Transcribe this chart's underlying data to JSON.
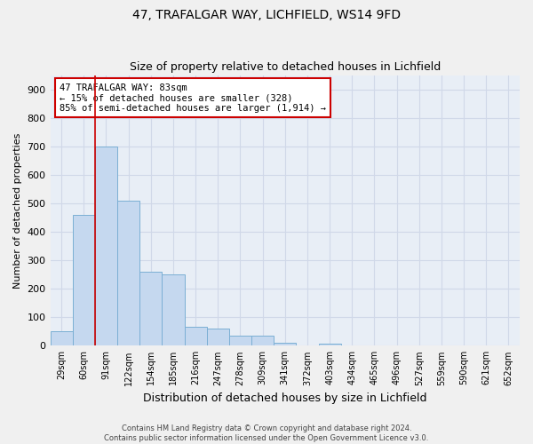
{
  "title1": "47, TRAFALGAR WAY, LICHFIELD, WS14 9FD",
  "title2": "Size of property relative to detached houses in Lichfield",
  "xlabel": "Distribution of detached houses by size in Lichfield",
  "ylabel": "Number of detached properties",
  "categories": [
    "29sqm",
    "60sqm",
    "91sqm",
    "122sqm",
    "154sqm",
    "185sqm",
    "216sqm",
    "247sqm",
    "278sqm",
    "309sqm",
    "341sqm",
    "372sqm",
    "403sqm",
    "434sqm",
    "465sqm",
    "496sqm",
    "527sqm",
    "559sqm",
    "590sqm",
    "621sqm",
    "652sqm"
  ],
  "values": [
    50,
    460,
    700,
    510,
    260,
    250,
    65,
    60,
    35,
    35,
    10,
    0,
    8,
    0,
    0,
    0,
    0,
    0,
    0,
    0,
    0
  ],
  "bar_color": "#c5d8ef",
  "bar_edge_color": "#7bafd4",
  "background_color": "#e8eef6",
  "grid_color": "#d0d8e8",
  "vline_x": 1.5,
  "vline_color": "#cc0000",
  "annotation_text": "47 TRAFALGAR WAY: 83sqm\n← 15% of detached houses are smaller (328)\n85% of semi-detached houses are larger (1,914) →",
  "annotation_box_color": "#ffffff",
  "annotation_box_edge": "#cc0000",
  "ylim": [
    0,
    950
  ],
  "yticks": [
    0,
    100,
    200,
    300,
    400,
    500,
    600,
    700,
    800,
    900
  ],
  "footnote": "Contains HM Land Registry data © Crown copyright and database right 2024.\nContains public sector information licensed under the Open Government Licence v3.0."
}
